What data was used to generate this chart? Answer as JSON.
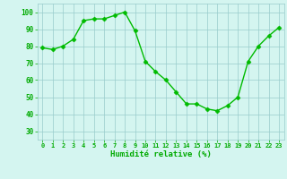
{
  "x": [
    0,
    1,
    2,
    3,
    4,
    5,
    6,
    7,
    8,
    9,
    10,
    11,
    12,
    13,
    14,
    15,
    16,
    17,
    18,
    19,
    20,
    21,
    22,
    23
  ],
  "y": [
    79,
    78,
    80,
    84,
    95,
    96,
    96,
    98,
    100,
    89,
    71,
    65,
    60,
    53,
    46,
    46,
    43,
    42,
    45,
    50,
    71,
    80,
    86,
    91
  ],
  "line_color": "#00bb00",
  "marker_color": "#00bb00",
  "bg_color": "#d4f5f0",
  "grid_color": "#99cccc",
  "xlabel": "Humidité relative (%)",
  "xlabel_color": "#00aa00",
  "tick_color": "#00aa00",
  "ylim": [
    25,
    105
  ],
  "yticks": [
    30,
    40,
    50,
    60,
    70,
    80,
    90,
    100
  ],
  "xlim": [
    -0.5,
    23.5
  ],
  "figsize": [
    3.2,
    2.0
  ],
  "dpi": 100
}
